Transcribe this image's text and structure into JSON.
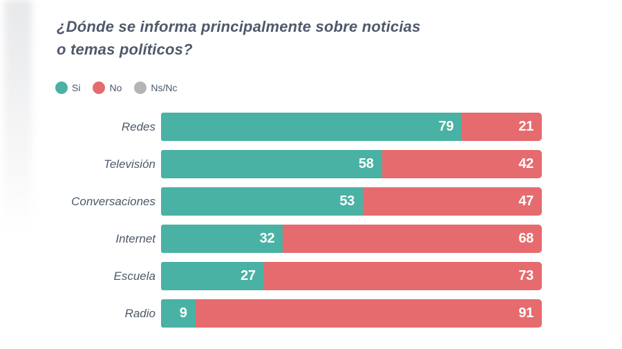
{
  "title_lines": [
    "¿Dónde se informa principalmente sobre noticias",
    "o temas políticos?"
  ],
  "legend": [
    {
      "label": "Si",
      "color": "#49B2A4"
    },
    {
      "label": "No",
      "color": "#E66B6E"
    },
    {
      "label": "Ns/Nc",
      "color": "#B4B4B4"
    }
  ],
  "colors": {
    "si": "#49B2A4",
    "no": "#E66B6E",
    "ns_nc": "#B4B4B4",
    "title_text": "#4E596B",
    "category_text": "#4C586A",
    "value_text": "#FFFFFF",
    "background": "#FFFFFF"
  },
  "chart_data": {
    "type": "bar",
    "orientation": "horizontal",
    "stacked": true,
    "title": "¿Dónde se informa principalmente sobre noticias o temas políticos?",
    "categories": [
      "Redes",
      "Televisión",
      "Conversaciones",
      "Internet",
      "Escuela",
      "Radio"
    ],
    "series": [
      {
        "name": "Si",
        "color": "#49B2A4",
        "values": [
          79,
          58,
          53,
          32,
          27,
          9
        ]
      },
      {
        "name": "No",
        "color": "#E66B6E",
        "values": [
          21,
          42,
          47,
          68,
          73,
          91
        ]
      },
      {
        "name": "Ns/Nc",
        "color": "#B4B4B4",
        "values": [
          0,
          0,
          0,
          0,
          0,
          0
        ]
      }
    ],
    "xlim": [
      0,
      100
    ],
    "axes_hidden": true,
    "grid": false,
    "value_labels": "inside-end",
    "legend_position": "top-left"
  }
}
